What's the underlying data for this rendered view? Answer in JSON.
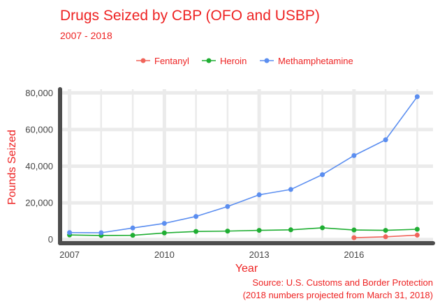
{
  "colors": {
    "fentanyl": "#f0645a",
    "heroin": "#1fae32",
    "methamphetamine": "#5b8ef0",
    "title": "#ee2222",
    "axis": "#4d4d4d",
    "grid": "#ebebeb"
  },
  "chart_data": {
    "type": "line",
    "title": "Drugs Seized by CBP (OFO and USBP)",
    "subtitle": "2007 - 2018",
    "xlabel": "Year",
    "ylabel": "Pounds Seized",
    "xlim": [
      2006.7,
      2018.5
    ],
    "ylim": [
      -2000,
      82000
    ],
    "x_ticks": [
      2007,
      2010,
      2013,
      2016
    ],
    "y_ticks": [
      0,
      20000,
      40000,
      60000,
      80000
    ],
    "y_tick_labels": [
      "0",
      "20,000",
      "40,000",
      "60,000",
      "80,000"
    ],
    "grid": true,
    "legend_position": "top",
    "series": [
      {
        "name": "Fentanyl",
        "x": [
          2016,
          2017,
          2018
        ],
        "values": [
          1000,
          1500,
          2400
        ]
      },
      {
        "name": "Heroin",
        "x": [
          2007,
          2008,
          2009,
          2010,
          2011,
          2012,
          2013,
          2014,
          2015,
          2016,
          2017,
          2018
        ],
        "values": [
          2500,
          2200,
          2300,
          3600,
          4400,
          4600,
          5000,
          5300,
          6400,
          5200,
          5000,
          5600
        ]
      },
      {
        "name": "Methamphetamine",
        "x": [
          2007,
          2008,
          2009,
          2010,
          2011,
          2012,
          2013,
          2014,
          2015,
          2016,
          2017,
          2018
        ],
        "values": [
          3800,
          3700,
          6300,
          8800,
          12600,
          18000,
          24400,
          27300,
          35400,
          45800,
          54400,
          77900
        ]
      }
    ],
    "source": "Source: U.S. Customs and Border Protection",
    "note": "(2018 numbers projected from March 31, 2018)"
  }
}
